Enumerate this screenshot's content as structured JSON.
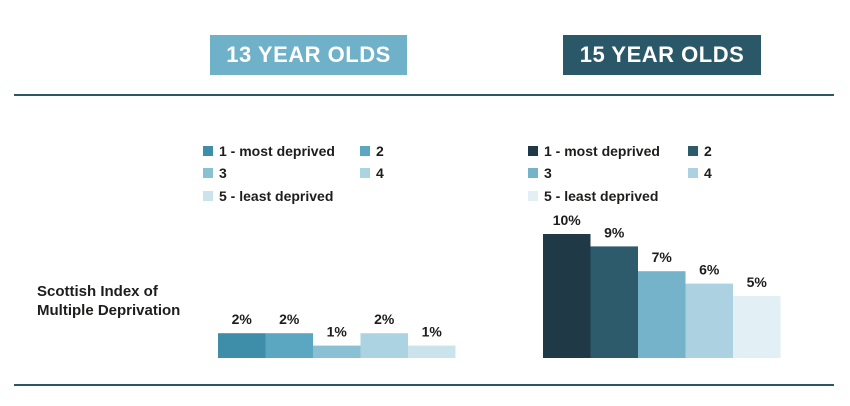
{
  "chart_data": [
    {
      "type": "bar",
      "title": "13 YEAR OLDS",
      "ylabel": "Scottish Index of Multiple Deprivation",
      "categories": [
        "1 - most deprived",
        "2",
        "3",
        "4",
        "5 - least deprived"
      ],
      "values": [
        2,
        2,
        1,
        2,
        1
      ],
      "value_labels": [
        "2%",
        "2%",
        "1%",
        "2%",
        "1%"
      ],
      "colors": [
        "#3f8ea9",
        "#5ba7c2",
        "#8ac0d3",
        "#acd3e1",
        "#cbe4ec"
      ],
      "title_bg": "#6eb1c9",
      "legend_position": "top",
      "ylim": [
        0,
        10
      ]
    },
    {
      "type": "bar",
      "title": "15 YEAR OLDS",
      "categories": [
        "1 - most deprived",
        "2",
        "3",
        "4",
        "5 - least deprived"
      ],
      "values": [
        10,
        9,
        7,
        6,
        5
      ],
      "value_labels": [
        "10%",
        "9%",
        "7%",
        "6%",
        "5%"
      ],
      "colors": [
        "#1f3a46",
        "#2d5b6c",
        "#75b3cb",
        "#acd2e1",
        "#e2eff4"
      ],
      "title_bg": "#2b5868",
      "legend_position": "top",
      "ylim": [
        0,
        10
      ]
    }
  ],
  "side_label": "Scottish Index of Multiple Deprivation",
  "rule_color": "#2c5663"
}
